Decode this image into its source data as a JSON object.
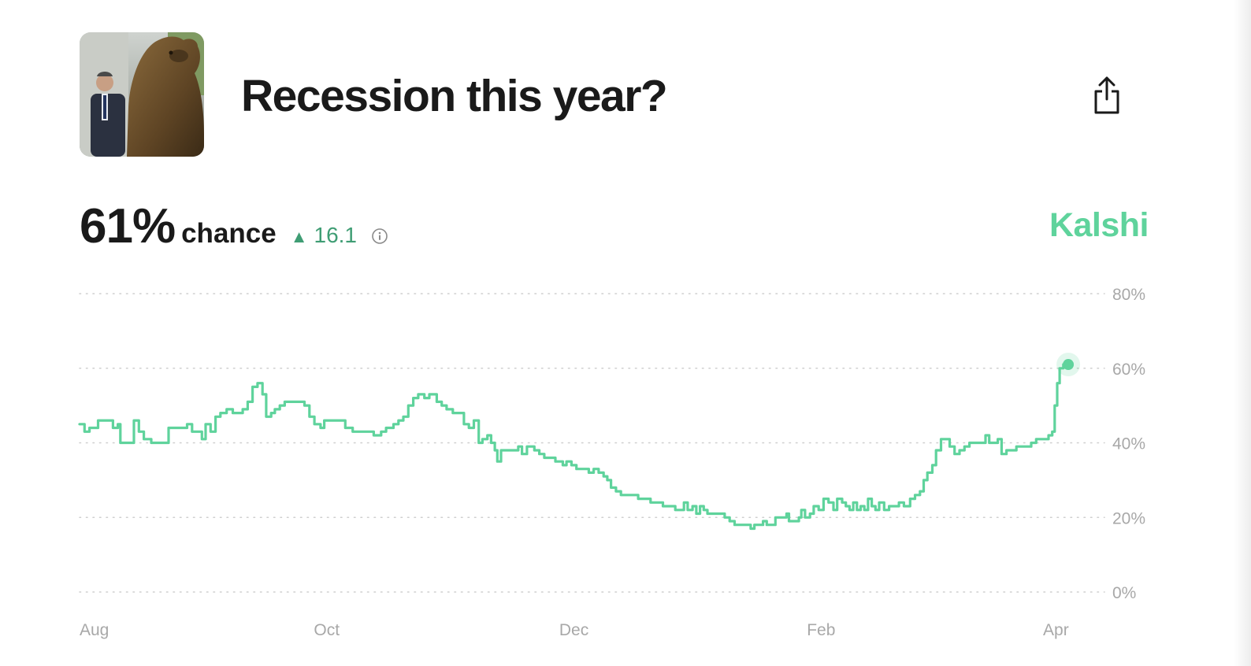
{
  "header": {
    "title": "Recession this year?",
    "thumbnail_icon": "bear-statue-photo",
    "share_icon": "share-icon"
  },
  "stats": {
    "percent": "61%",
    "chance_label": "chance",
    "delta_arrow": "▲",
    "delta_value": "16.1",
    "info_icon": "info-icon"
  },
  "brand": {
    "name": "Kalshi",
    "color": "#5fd39c"
  },
  "colors": {
    "line": "#5fd39c",
    "delta": "#3f9d74",
    "grid": "#cfcfcf",
    "axis_text": "#a8a8a8"
  },
  "chart_data": {
    "type": "line",
    "title": "",
    "xlabel": "",
    "ylabel": "",
    "ylim": [
      0,
      80
    ],
    "xlim": [
      0,
      8.28
    ],
    "x_ticks": [
      {
        "label": "Aug",
        "x": 0
      },
      {
        "label": "Oct",
        "x": 2
      },
      {
        "label": "Dec",
        "x": 4
      },
      {
        "label": "Feb",
        "x": 6
      },
      {
        "label": "Apr",
        "x": 7.9
      }
    ],
    "y_ticks": [
      {
        "label": "80%",
        "y": 80
      },
      {
        "label": "60%",
        "y": 60
      },
      {
        "label": "40%",
        "y": 40
      },
      {
        "label": "20%",
        "y": 20
      },
      {
        "label": "0%",
        "y": 0
      }
    ],
    "grid": true,
    "step": true,
    "series": [
      {
        "color": "#5fd39c",
        "points": [
          [
            0.0,
            45
          ],
          [
            0.04,
            43
          ],
          [
            0.08,
            44
          ],
          [
            0.15,
            46
          ],
          [
            0.25,
            46
          ],
          [
            0.27,
            44
          ],
          [
            0.31,
            45
          ],
          [
            0.33,
            40
          ],
          [
            0.42,
            40
          ],
          [
            0.44,
            46
          ],
          [
            0.48,
            43
          ],
          [
            0.52,
            41
          ],
          [
            0.58,
            40
          ],
          [
            0.7,
            40
          ],
          [
            0.72,
            44
          ],
          [
            0.85,
            44
          ],
          [
            0.87,
            45
          ],
          [
            0.91,
            43
          ],
          [
            0.95,
            43
          ],
          [
            0.99,
            41
          ],
          [
            1.02,
            45
          ],
          [
            1.06,
            43
          ],
          [
            1.1,
            47
          ],
          [
            1.14,
            48
          ],
          [
            1.19,
            49
          ],
          [
            1.24,
            48
          ],
          [
            1.32,
            49
          ],
          [
            1.36,
            51
          ],
          [
            1.4,
            55
          ],
          [
            1.44,
            56
          ],
          [
            1.48,
            53
          ],
          [
            1.51,
            47
          ],
          [
            1.55,
            48
          ],
          [
            1.58,
            49
          ],
          [
            1.62,
            50
          ],
          [
            1.66,
            51
          ],
          [
            1.76,
            51
          ],
          [
            1.82,
            50
          ],
          [
            1.86,
            47
          ],
          [
            1.9,
            45
          ],
          [
            1.95,
            44
          ],
          [
            1.98,
            46
          ],
          [
            2.03,
            46
          ],
          [
            2.11,
            46
          ],
          [
            2.15,
            44
          ],
          [
            2.21,
            43
          ],
          [
            2.33,
            43
          ],
          [
            2.38,
            42
          ],
          [
            2.44,
            43
          ],
          [
            2.48,
            44
          ],
          [
            2.54,
            45
          ],
          [
            2.58,
            46
          ],
          [
            2.62,
            47
          ],
          [
            2.66,
            50
          ],
          [
            2.7,
            52
          ],
          [
            2.74,
            53
          ],
          [
            2.79,
            52
          ],
          [
            2.83,
            53
          ],
          [
            2.89,
            51
          ],
          [
            2.93,
            50
          ],
          [
            2.97,
            49
          ],
          [
            3.02,
            48
          ],
          [
            3.07,
            48
          ],
          [
            3.11,
            45
          ],
          [
            3.15,
            44
          ],
          [
            3.19,
            46
          ],
          [
            3.23,
            40
          ],
          [
            3.26,
            41
          ],
          [
            3.3,
            42
          ],
          [
            3.33,
            40
          ],
          [
            3.36,
            38
          ],
          [
            3.38,
            35
          ],
          [
            3.41,
            38
          ],
          [
            3.45,
            38
          ],
          [
            3.51,
            38
          ],
          [
            3.55,
            39
          ],
          [
            3.58,
            37
          ],
          [
            3.62,
            39
          ],
          [
            3.68,
            38
          ],
          [
            3.72,
            37
          ],
          [
            3.76,
            36
          ],
          [
            3.81,
            36
          ],
          [
            3.85,
            35
          ],
          [
            3.91,
            34
          ],
          [
            3.94,
            35
          ],
          [
            3.98,
            34
          ],
          [
            4.02,
            33
          ],
          [
            4.06,
            33
          ],
          [
            4.12,
            32
          ],
          [
            4.16,
            33
          ],
          [
            4.2,
            32
          ],
          [
            4.24,
            31
          ],
          [
            4.27,
            30
          ],
          [
            4.3,
            28
          ],
          [
            4.34,
            27
          ],
          [
            4.38,
            26
          ],
          [
            4.48,
            26
          ],
          [
            4.52,
            25
          ],
          [
            4.58,
            25
          ],
          [
            4.62,
            24
          ],
          [
            4.68,
            24
          ],
          [
            4.72,
            23
          ],
          [
            4.78,
            23
          ],
          [
            4.82,
            22
          ],
          [
            4.86,
            22
          ],
          [
            4.89,
            24
          ],
          [
            4.92,
            22
          ],
          [
            4.96,
            23
          ],
          [
            4.99,
            21
          ],
          [
            5.02,
            23
          ],
          [
            5.05,
            22
          ],
          [
            5.08,
            21
          ],
          [
            5.18,
            21
          ],
          [
            5.22,
            20
          ],
          [
            5.26,
            19
          ],
          [
            5.3,
            18
          ],
          [
            5.4,
            18
          ],
          [
            5.43,
            17
          ],
          [
            5.46,
            18
          ],
          [
            5.5,
            18
          ],
          [
            5.53,
            19
          ],
          [
            5.56,
            18
          ],
          [
            5.59,
            18
          ],
          [
            5.63,
            20
          ],
          [
            5.68,
            20
          ],
          [
            5.72,
            21
          ],
          [
            5.74,
            19
          ],
          [
            5.78,
            19
          ],
          [
            5.82,
            20
          ],
          [
            5.84,
            22
          ],
          [
            5.87,
            20
          ],
          [
            5.91,
            21
          ],
          [
            5.94,
            23
          ],
          [
            5.98,
            22
          ],
          [
            6.02,
            25
          ],
          [
            6.06,
            24
          ],
          [
            6.1,
            22
          ],
          [
            6.13,
            25
          ],
          [
            6.17,
            24
          ],
          [
            6.2,
            23
          ],
          [
            6.23,
            22
          ],
          [
            6.26,
            24
          ],
          [
            6.29,
            22
          ],
          [
            6.32,
            23
          ],
          [
            6.35,
            22
          ],
          [
            6.38,
            25
          ],
          [
            6.41,
            23
          ],
          [
            6.44,
            22
          ],
          [
            6.47,
            24
          ],
          [
            6.51,
            22
          ],
          [
            6.55,
            23
          ],
          [
            6.59,
            23
          ],
          [
            6.63,
            24
          ],
          [
            6.67,
            23
          ],
          [
            6.72,
            25
          ],
          [
            6.76,
            26
          ],
          [
            6.8,
            27
          ],
          [
            6.83,
            30
          ],
          [
            6.86,
            32
          ],
          [
            6.9,
            34
          ],
          [
            6.93,
            38
          ],
          [
            6.97,
            41
          ],
          [
            7.04,
            39
          ],
          [
            7.08,
            37
          ],
          [
            7.12,
            38
          ],
          [
            7.16,
            39
          ],
          [
            7.2,
            40
          ],
          [
            7.3,
            40
          ],
          [
            7.33,
            42
          ],
          [
            7.36,
            40
          ],
          [
            7.4,
            40
          ],
          [
            7.43,
            41
          ],
          [
            7.46,
            37
          ],
          [
            7.5,
            38
          ],
          [
            7.55,
            38
          ],
          [
            7.58,
            39
          ],
          [
            7.66,
            39
          ],
          [
            7.7,
            40
          ],
          [
            7.74,
            41
          ],
          [
            7.8,
            41
          ],
          [
            7.84,
            42
          ],
          [
            7.87,
            43
          ],
          [
            7.89,
            50
          ],
          [
            7.91,
            56
          ],
          [
            7.93,
            60
          ],
          [
            7.96,
            61
          ],
          [
            8.0,
            61
          ]
        ]
      }
    ],
    "last_point": {
      "x": 8.0,
      "y": 61
    }
  }
}
